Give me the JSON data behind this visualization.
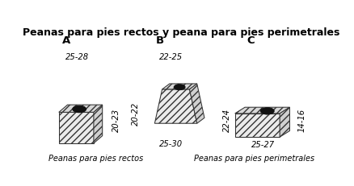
{
  "title": "Peanas para pies rectos y peana para pies perimetrales",
  "title_fontsize": 9.0,
  "bg_color": "#ffffff",
  "label_A": "A",
  "label_B": "B",
  "label_C": "C",
  "dim_A_top": "25-28",
  "dim_A_side": "20-23",
  "dim_B_top": "22-25",
  "dim_B_left": "20-22",
  "dim_B_bottom": "25-30",
  "dim_C_bottom": "25-27",
  "dim_C_left": "22-24",
  "dim_C_side": "14-16",
  "caption_left": "Peanas para pies rectos",
  "caption_right": "Peanas para pies perimetrales",
  "caption_fontsize": 7.0,
  "label_fontsize": 9.5,
  "dim_fontsize": 7.2
}
